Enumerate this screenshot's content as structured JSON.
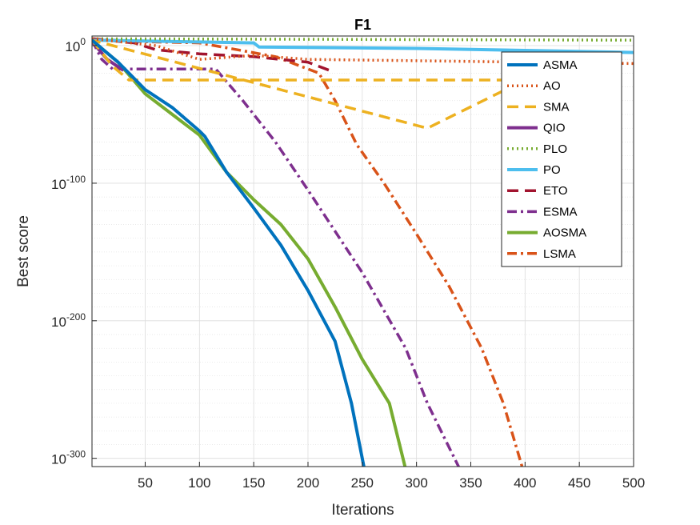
{
  "chart_data": {
    "type": "line",
    "title": "F1",
    "xlabel": "Iterations",
    "ylabel": "Best score",
    "yscale": "log",
    "xlim": [
      1,
      500
    ],
    "ylim_exponent": [
      -306,
      7
    ],
    "grid": true,
    "minor_grid": true,
    "legend_position": "top-right",
    "x_ticks": [
      {
        "value": 50,
        "label": "50"
      },
      {
        "value": 100,
        "label": "100"
      },
      {
        "value": 150,
        "label": "150"
      },
      {
        "value": 200,
        "label": "200"
      },
      {
        "value": 250,
        "label": "250"
      },
      {
        "value": 300,
        "label": "300"
      },
      {
        "value": 350,
        "label": "350"
      },
      {
        "value": 400,
        "label": "400"
      },
      {
        "value": 450,
        "label": "450"
      },
      {
        "value": 500,
        "label": "500"
      }
    ],
    "y_ticks": [
      {
        "exp": 0,
        "base": "10",
        "sup": "0"
      },
      {
        "exp": -100,
        "base": "10",
        "sup": "-100"
      },
      {
        "exp": -200,
        "base": "10",
        "sup": "-200"
      },
      {
        "exp": -300,
        "base": "10",
        "sup": "-300"
      }
    ],
    "series": [
      {
        "name": "ASMA",
        "color": "#0072BD",
        "dash": "solid",
        "points": [
          [
            1,
            4
          ],
          [
            10,
            -2
          ],
          [
            25,
            -12
          ],
          [
            50,
            -32
          ],
          [
            75,
            -45
          ],
          [
            100,
            -62
          ],
          [
            105,
            -66
          ],
          [
            125,
            -92
          ],
          [
            150,
            -118
          ],
          [
            175,
            -145
          ],
          [
            200,
            -178
          ],
          [
            225,
            -215
          ],
          [
            240,
            -260
          ],
          [
            252,
            -308
          ]
        ]
      },
      {
        "name": "AO",
        "color": "#D95319",
        "dash": "dot",
        "points": [
          [
            1,
            5
          ],
          [
            60,
            0
          ],
          [
            100,
            -10
          ],
          [
            150,
            -7
          ],
          [
            200,
            -10
          ],
          [
            300,
            -11
          ],
          [
            400,
            -12
          ],
          [
            500,
            -13
          ]
        ]
      },
      {
        "name": "SMA",
        "color": "#EDB120",
        "dash": "dash",
        "points": [
          [
            1,
            4
          ],
          [
            20,
            -15
          ],
          [
            35,
            -25
          ],
          [
            400,
            -25
          ],
          [
            310,
            -60
          ],
          [
            1,
            4
          ]
        ]
      },
      {
        "name": "QIO",
        "color": "#7E2F8E",
        "dash": "solid",
        "points": [
          [
            1,
            3
          ],
          [
            15,
            -10
          ],
          [
            30,
            -18
          ]
        ]
      },
      {
        "name": "PLO",
        "color": "#77AC30",
        "dash": "dot",
        "points": [
          [
            1,
            5
          ],
          [
            500,
            4
          ]
        ]
      },
      {
        "name": "PO",
        "color": "#4DBEEE",
        "dash": "solid",
        "points": [
          [
            1,
            4
          ],
          [
            150,
            2
          ],
          [
            155,
            -1
          ],
          [
            300,
            -2
          ],
          [
            500,
            -5
          ]
        ]
      },
      {
        "name": "ETO",
        "color": "#A2142F",
        "dash": "dash",
        "points": [
          [
            1,
            5
          ],
          [
            40,
            2
          ],
          [
            60,
            -3
          ],
          [
            100,
            -6
          ],
          [
            150,
            -8
          ],
          [
            200,
            -12
          ],
          [
            220,
            -18
          ]
        ]
      },
      {
        "name": "ESMA",
        "color": "#7E2F8E",
        "dash": "dashdot",
        "points": [
          [
            1,
            4
          ],
          [
            10,
            -10
          ],
          [
            20,
            -17
          ],
          [
            115,
            -17
          ],
          [
            140,
            -40
          ],
          [
            170,
            -70
          ],
          [
            200,
            -105
          ],
          [
            250,
            -165
          ],
          [
            290,
            -220
          ],
          [
            310,
            -260
          ],
          [
            340,
            -308
          ]
        ]
      },
      {
        "name": "AOSMA",
        "color": "#77AC30",
        "dash": "solid",
        "points": [
          [
            1,
            4
          ],
          [
            10,
            -2
          ],
          [
            25,
            -12
          ],
          [
            50,
            -35
          ],
          [
            75,
            -50
          ],
          [
            100,
            -65
          ],
          [
            125,
            -92
          ],
          [
            150,
            -112
          ],
          [
            175,
            -130
          ],
          [
            200,
            -155
          ],
          [
            225,
            -190
          ],
          [
            250,
            -228
          ],
          [
            275,
            -260
          ],
          [
            290,
            -308
          ]
        ]
      },
      {
        "name": "LSMA",
        "color": "#D95319",
        "dash": "dashdot",
        "points": [
          [
            1,
            5
          ],
          [
            40,
            3
          ],
          [
            100,
            2
          ],
          [
            170,
            -8
          ],
          [
            210,
            -20
          ],
          [
            225,
            -40
          ],
          [
            245,
            -72
          ],
          [
            270,
            -100
          ],
          [
            300,
            -137
          ],
          [
            330,
            -175
          ],
          [
            360,
            -220
          ],
          [
            380,
            -260
          ],
          [
            398,
            -308
          ]
        ]
      }
    ]
  }
}
